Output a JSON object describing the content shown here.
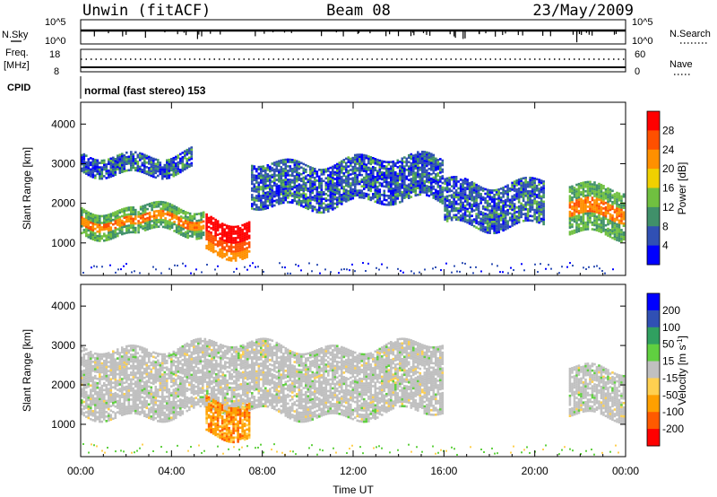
{
  "header": {
    "station": "Unwin (fitACF)",
    "beam": "Beam 08",
    "date": "23/May/2009"
  },
  "strips": {
    "nsky_label": "N.Sky",
    "nsky_ticks": [
      "10^5",
      "10^0"
    ],
    "nsearch_label": "N.Search",
    "nsearch_ticks": [
      "10^5",
      "10^0"
    ],
    "freq_label": "Freq.",
    "freq_unit": "[MHz]",
    "freq_ticks": [
      "18",
      "8"
    ],
    "nave_label": "Nave",
    "nave_ticks": [
      "60",
      "0"
    ],
    "cpid_label": "CPID",
    "cpid_text": "normal (fast stereo) 153"
  },
  "colors": {
    "power": [
      "#0000ff",
      "#3050b4",
      "#40906a",
      "#70c040",
      "#f0d000",
      "#ff9000",
      "#ff5000",
      "#ff0000"
    ],
    "velocity": [
      "#ff0000",
      "#ff5a00",
      "#ffa000",
      "#ffd050",
      "#c0c0c0",
      "#60d040",
      "#30a060",
      "#3050b4",
      "#0000ff"
    ]
  },
  "chart_data": [
    {
      "type": "heatmap",
      "title": "Power",
      "ylabel": "Slant Range [km]",
      "yticks": [
        "1000",
        "2000",
        "3000",
        "4000"
      ],
      "xticks": [
        "00:00",
        "04:00",
        "08:00",
        "12:00",
        "16:00",
        "20:00",
        "00:00"
      ],
      "xlim": [
        0,
        24
      ],
      "ylim": [
        180,
        4550
      ],
      "colorbar": {
        "label": "Power [dB]",
        "levels": [
          4,
          8,
          12,
          16,
          20,
          24,
          28
        ]
      },
      "regions": [
        {
          "from": 0,
          "to": 2.5,
          "range": [
            1250,
            1900
          ],
          "level": "high"
        },
        {
          "from": 2.5,
          "to": 5.5,
          "range": [
            1350,
            2000
          ],
          "level": "high"
        },
        {
          "from": 5.5,
          "to": 7.5,
          "range": [
            750,
            1650
          ],
          "level": "very high"
        },
        {
          "from": 7.5,
          "to": 16,
          "range": [
            2000,
            3100
          ],
          "level": "low"
        },
        {
          "from": 16,
          "to": 20.5,
          "range": [
            1500,
            2600
          ],
          "level": "low"
        },
        {
          "from": 21.5,
          "to": 24,
          "range": [
            1300,
            2500
          ],
          "level": "high"
        },
        {
          "from": 0,
          "to": 5,
          "range": [
            2800,
            3300
          ],
          "level": "low"
        }
      ]
    },
    {
      "type": "heatmap",
      "title": "Velocity",
      "ylabel": "Slant Range [km]",
      "xlabel": "Time UT",
      "yticks": [
        "1000",
        "2000",
        "3000",
        "4000"
      ],
      "xticks": [
        "00:00",
        "04:00",
        "08:00",
        "12:00",
        "16:00",
        "20:00",
        "00:00"
      ],
      "xlim": [
        0,
        24
      ],
      "ylim": [
        180,
        4550
      ],
      "colorbar": {
        "label": "Velocity [m s^-1]",
        "levels": [
          200,
          100,
          50,
          15,
          -15,
          -50,
          -100,
          -200
        ]
      },
      "regions": [
        {
          "from": 0,
          "to": 16,
          "range": [
            1250,
            3000
          ],
          "velocity": "-15 to 15"
        },
        {
          "from": 5.5,
          "to": 7.5,
          "range": [
            750,
            1650
          ],
          "velocity": "-50 to -100"
        },
        {
          "from": 21.5,
          "to": 24,
          "range": [
            1300,
            2500
          ],
          "velocity": "-15 to 15"
        }
      ]
    }
  ]
}
